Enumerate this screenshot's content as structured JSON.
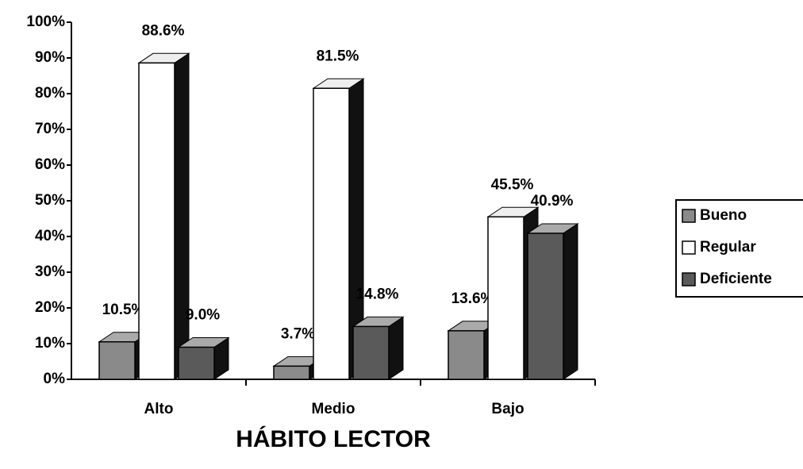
{
  "chart_data": {
    "type": "bar3d",
    "x_label": "HÁBITO LECTOR",
    "categories": [
      "Alto",
      "Medio",
      "Bajo"
    ],
    "series": [
      {
        "name": "Bueno",
        "color": "#8a8a8a",
        "values": [
          10.5,
          3.7,
          13.6
        ],
        "value_labels": [
          "10.5%",
          "3.7%",
          "13.6%"
        ]
      },
      {
        "name": "Regular",
        "color": "#ffffff",
        "values": [
          88.6,
          81.5,
          45.5
        ],
        "value_labels": [
          "88.6%",
          "81.5%",
          "45.5%"
        ]
      },
      {
        "name": "Deficiente",
        "color": "#5a5a5a",
        "values": [
          9.0,
          14.8,
          40.9
        ],
        "value_labels": [
          "9.0%",
          "14.8%",
          "40.9%"
        ]
      }
    ],
    "ylim": [
      0,
      100
    ],
    "yticks": [
      {
        "value": 0,
        "label": "0%"
      },
      {
        "value": 10,
        "label": "10%"
      },
      {
        "value": 20,
        "label": "20%"
      },
      {
        "value": 30,
        "label": "30%"
      },
      {
        "value": 40,
        "label": "40%"
      },
      {
        "value": 50,
        "label": "50%"
      },
      {
        "value": 60,
        "label": "60%"
      },
      {
        "value": 70,
        "label": "70%"
      },
      {
        "value": 80,
        "label": "80%"
      },
      {
        "value": 90,
        "label": "90%"
      },
      {
        "value": 100,
        "label": "100%"
      }
    ],
    "grid": false,
    "legend": "right"
  }
}
